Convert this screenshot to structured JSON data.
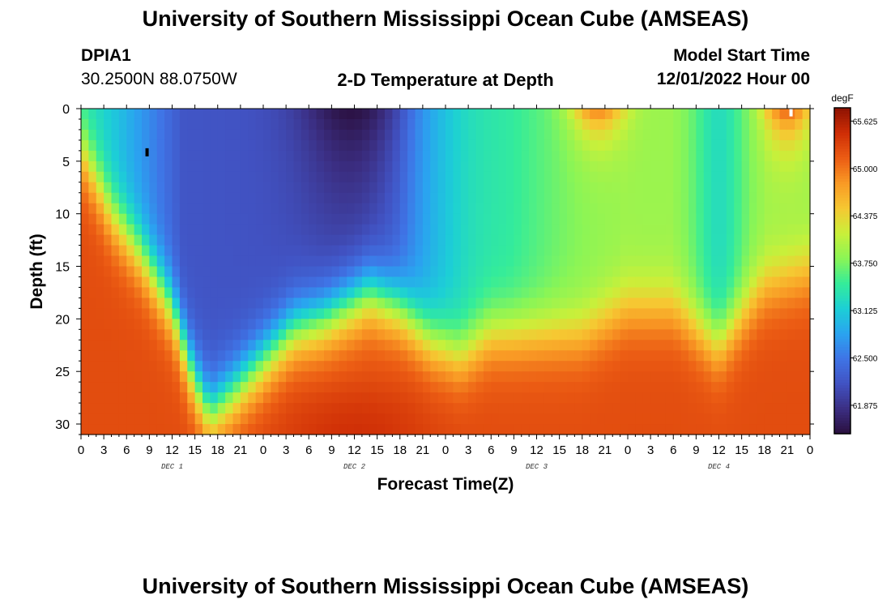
{
  "header": {
    "title": "University of Southern Mississippi Ocean Cube (AMSEAS)",
    "station": "DPIA1",
    "coords": "30.2500N  88.0750W",
    "plot_title": "2-D Temperature at Depth",
    "model_start_label": "Model Start Time",
    "model_start_value": "12/01/2022 Hour 00"
  },
  "footer": {
    "title": "University of Southern Mississippi Ocean Cube (AMSEAS)"
  },
  "chart_data": {
    "type": "heatmap",
    "title": "2-D Temperature at Depth",
    "xlabel": "Forecast Time(Z)",
    "ylabel": "Depth (ft)",
    "x_hours": [
      0,
      96
    ],
    "x_tick_step_hours": 3,
    "x_tick_labels": [
      "0",
      "3",
      "6",
      "9",
      "12",
      "15",
      "18",
      "21",
      "0",
      "3",
      "6",
      "9",
      "12",
      "15",
      "18",
      "21",
      "0",
      "3",
      "6",
      "9",
      "12",
      "15",
      "18",
      "21",
      "0",
      "3",
      "6",
      "9",
      "12",
      "15",
      "18",
      "21",
      "0"
    ],
    "day_labels": [
      {
        "hour": 12,
        "label": "DEC 1"
      },
      {
        "hour": 36,
        "label": "DEC 2"
      },
      {
        "hour": 60,
        "label": "DEC 3"
      },
      {
        "hour": 84,
        "label": "DEC 4"
      }
    ],
    "y_range_ft": [
      0,
      31
    ],
    "y_ticks": [
      0,
      5,
      10,
      15,
      20,
      25,
      30
    ],
    "colorbar": {
      "unit": "degF",
      "range": [
        61.5,
        65.8
      ],
      "ticks": [
        "65.625",
        "65.000",
        "64.375",
        "63.750",
        "63.125",
        "62.500",
        "61.875"
      ],
      "colors": [
        "#2a0f3d",
        "#3b2e82",
        "#4152c2",
        "#3f74e6",
        "#2aa3f0",
        "#1ccfd6",
        "#34ec9a",
        "#8af556",
        "#c9f03a",
        "#f6c832",
        "#f99a25",
        "#ec5d14",
        "#cf2e06",
        "#8d1202"
      ]
    },
    "markers": [
      {
        "hour": 8.7,
        "depth": 4,
        "color": "#000000"
      },
      {
        "hour": 93.5,
        "depth": 0.2,
        "color": "#ffffff"
      }
    ],
    "field_description": "Warm (~65.3 degF) bottom water below 20-25 ft; cold (~62 degF) water column around hours 6-20 and 28-44 with coldest ~61.6 degF near hour 9 at 0-5 ft on Dec 2; mid-range (~63.5-64) water from hour 46 onward with cold tongues near hours 56 and 84; warm surface patches near hours 66-70 and 91-96."
  }
}
